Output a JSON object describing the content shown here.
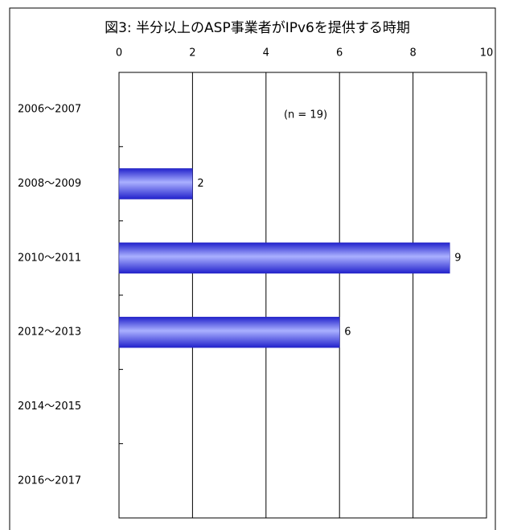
{
  "chart_data": {
    "type": "bar",
    "orientation": "horizontal",
    "title": "図3:  半分以上のASP事業者がIPv6を提供する時期",
    "annotation": "(n = 19)",
    "categories": [
      "2006〜2007",
      "2008〜2009",
      "2010〜2011",
      "2012〜2013",
      "2014〜2015",
      "2016〜2017"
    ],
    "values": [
      null,
      2,
      9,
      6,
      null,
      null
    ],
    "color": "#3333ee",
    "xlim": [
      0,
      10
    ],
    "xticks": [
      0,
      2,
      4,
      6,
      8,
      10
    ],
    "grid": true
  }
}
